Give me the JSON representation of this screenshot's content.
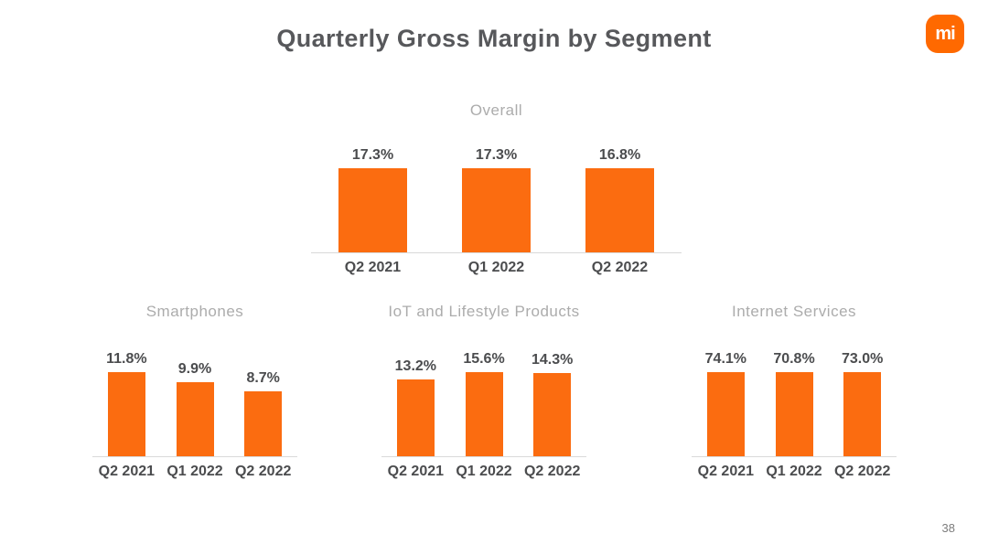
{
  "slide": {
    "title": "Quarterly Gross Margin by Segment",
    "logo_text": "mi",
    "page_number": "38"
  },
  "colors": {
    "bar_orange": "#FB6C10",
    "logo_orange": "#FF6900",
    "title_text": "#57585B",
    "chart_title_text": "#ACACAC",
    "label_text": "#4B4C4E",
    "axis_line": "#D9D9D9",
    "page_number_text": "#7C7C7C",
    "background": "#FFFFFF"
  },
  "chart_data": [
    {
      "id": "overall",
      "type": "bar",
      "title": "Overall",
      "categories": [
        "Q2 2021",
        "Q1 2022",
        "Q2 2022"
      ],
      "values": [
        17.3,
        17.3,
        16.8
      ],
      "value_labels": [
        "17.3%",
        "17.3%",
        "16.8%"
      ],
      "unit": "percent",
      "ylim": [
        0,
        20
      ],
      "grid": false,
      "legend": false
    },
    {
      "id": "smartphones",
      "type": "bar",
      "title": "Smartphones",
      "categories": [
        "Q2 2021",
        "Q1 2022",
        "Q2 2022"
      ],
      "values": [
        11.8,
        9.9,
        8.7
      ],
      "value_labels": [
        "11.8%",
        "9.9%",
        "8.7%"
      ],
      "unit": "percent",
      "ylim": [
        0,
        14
      ],
      "grid": false,
      "legend": false
    },
    {
      "id": "iot",
      "type": "bar",
      "title": "IoT and Lifestyle Products",
      "categories": [
        "Q2 2021",
        "Q1 2022",
        "Q2 2022"
      ],
      "values": [
        13.2,
        15.6,
        14.3
      ],
      "value_labels": [
        "13.2%",
        "15.6%",
        "14.3%"
      ],
      "unit": "percent",
      "ylim": [
        0,
        18
      ],
      "grid": false,
      "legend": false
    },
    {
      "id": "internet",
      "type": "bar",
      "title": "Internet Services",
      "categories": [
        "Q2 2021",
        "Q1 2022",
        "Q2 2022"
      ],
      "values": [
        74.1,
        70.8,
        73.0
      ],
      "value_labels": [
        "74.1%",
        "70.8%",
        "73.0%"
      ],
      "unit": "percent",
      "ylim": [
        0,
        88
      ],
      "grid": false,
      "legend": false
    }
  ]
}
